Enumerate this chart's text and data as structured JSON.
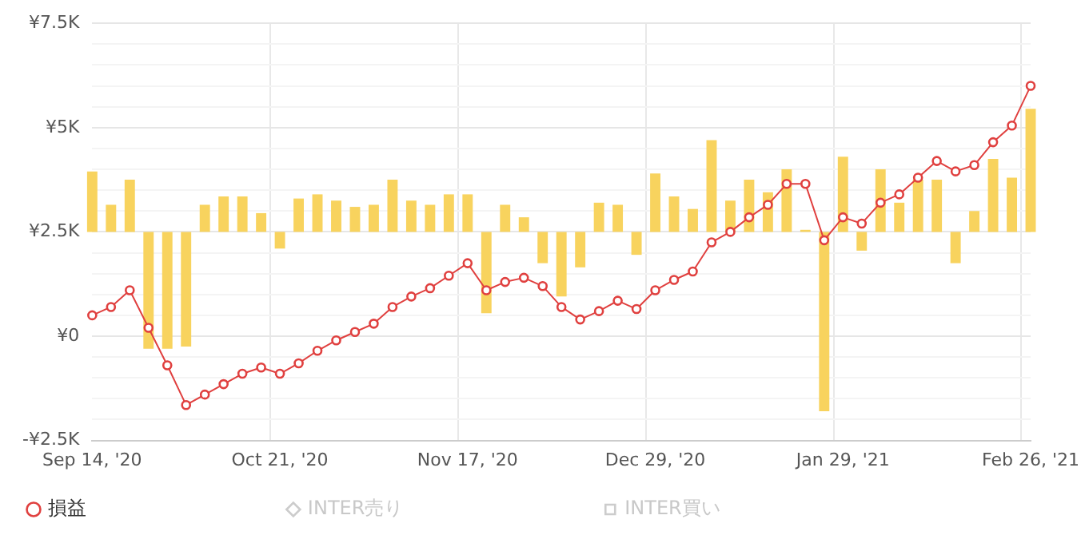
{
  "chart_data": {
    "type": "line",
    "categories": [
      "Sep 14, '20",
      null,
      null,
      null,
      null,
      null,
      null,
      null,
      null,
      null,
      "Oct 21, '20",
      null,
      null,
      null,
      null,
      null,
      null,
      null,
      null,
      null,
      "Nov 17, '20",
      null,
      null,
      null,
      null,
      null,
      null,
      null,
      null,
      null,
      "Dec 29, '20",
      null,
      null,
      null,
      null,
      null,
      null,
      null,
      null,
      null,
      "Jan 29, '21",
      null,
      null,
      null,
      null,
      null,
      null,
      null,
      null,
      null,
      "Feb 26, '21"
    ],
    "series": [
      {
        "name": "損益",
        "color": "#e0403f",
        "marker": "circle",
        "values": [
          500,
          700,
          1100,
          200,
          -700,
          -1650,
          -1400,
          -1150,
          -900,
          -750,
          -900,
          -650,
          -350,
          -100,
          100,
          300,
          700,
          950,
          1150,
          1450,
          1750,
          1100,
          1300,
          1400,
          1200,
          700,
          400,
          600,
          850,
          650,
          1100,
          1350,
          1550,
          2250,
          2500,
          2850,
          3150,
          3650,
          3650,
          2300,
          2850,
          2700,
          3200,
          3400,
          3800,
          4200,
          3950,
          4100,
          4650,
          5050,
          6000
        ]
      },
      {
        "type": "line",
        "name": "INTER売り",
        "color": "#cccccc",
        "marker": "diamond",
        "values": [
          null,
          null,
          null,
          null,
          null,
          null,
          null,
          null,
          null,
          null,
          null,
          null,
          null,
          null,
          null,
          null,
          null,
          null,
          null,
          null,
          null,
          null,
          null,
          null,
          null,
          null,
          null,
          null,
          null,
          null,
          null,
          null,
          null,
          null,
          null,
          null,
          null,
          null,
          null,
          null,
          null,
          null,
          null,
          null,
          null,
          null,
          null,
          null,
          null,
          null,
          null
        ]
      },
      {
        "type": "line",
        "name": "INTER買い",
        "color": "#cccccc",
        "marker": "square",
        "values": [
          null,
          null,
          null,
          null,
          null,
          null,
          null,
          null,
          null,
          null,
          null,
          null,
          null,
          null,
          null,
          null,
          null,
          null,
          null,
          null,
          null,
          null,
          null,
          null,
          null,
          null,
          null,
          null,
          null,
          null,
          null,
          null,
          null,
          null,
          null,
          null,
          null,
          null,
          null,
          null,
          null,
          null,
          null,
          null,
          null,
          null,
          null,
          null,
          null,
          null,
          null
        ]
      },
      {
        "type": "bar",
        "color": "#f8d35e",
        "values": [
          1450,
          650,
          1250,
          -2800,
          -2800,
          -2750,
          650,
          850,
          850,
          450,
          -400,
          800,
          900,
          750,
          600,
          650,
          1250,
          750,
          650,
          900,
          900,
          -1950,
          650,
          350,
          -750,
          -1550,
          -850,
          700,
          650,
          -550,
          1400,
          850,
          550,
          2200,
          750,
          1250,
          950,
          1500,
          50,
          -4300,
          1800,
          -450,
          1500,
          700,
          1250,
          1250,
          -750,
          500,
          1750,
          1300,
          2950
        ],
        "base": [
          2500,
          2500,
          2500,
          2500,
          2500,
          2500,
          2500,
          2500,
          2500,
          2500,
          2500,
          2500,
          2500,
          2500,
          2500,
          2500,
          2500,
          2500,
          2500,
          2500,
          2500,
          2500,
          2500,
          2500,
          2500,
          2500,
          2500,
          2500,
          2500,
          2500,
          2500,
          2500,
          2500,
          2500,
          2500,
          2500,
          2500,
          2500,
          2500,
          2500,
          2500,
          2500,
          2500,
          2500,
          2500,
          2500,
          2500,
          2500,
          2500,
          2500,
          2500
        ]
      }
    ],
    "ylim": [
      -2500,
      7500
    ],
    "yticks": [
      {
        "value": -2500,
        "label": "-¥2.5K"
      },
      {
        "value": -2000,
        "label": null
      },
      {
        "value": -1500,
        "label": null
      },
      {
        "value": -1000,
        "label": null
      },
      {
        "value": -500,
        "label": null
      },
      {
        "value": 0,
        "label": "¥0"
      },
      {
        "value": 500,
        "label": null
      },
      {
        "value": 1000,
        "label": null
      },
      {
        "value": 1500,
        "label": null
      },
      {
        "value": 2000,
        "label": null
      },
      {
        "value": 2500,
        "label": "¥2.5K"
      },
      {
        "value": 3000,
        "label": null
      },
      {
        "value": 3500,
        "label": null
      },
      {
        "value": 4000,
        "label": null
      },
      {
        "value": 4500,
        "label": null
      },
      {
        "value": 5000,
        "label": "¥5K"
      },
      {
        "value": 5500,
        "label": null
      },
      {
        "value": 6000,
        "label": null
      },
      {
        "value": 6500,
        "label": null
      },
      {
        "value": 7000,
        "label": null
      },
      {
        "value": 7500,
        "label": "¥7.5K"
      }
    ],
    "grid": true,
    "legend": "bottom"
  }
}
